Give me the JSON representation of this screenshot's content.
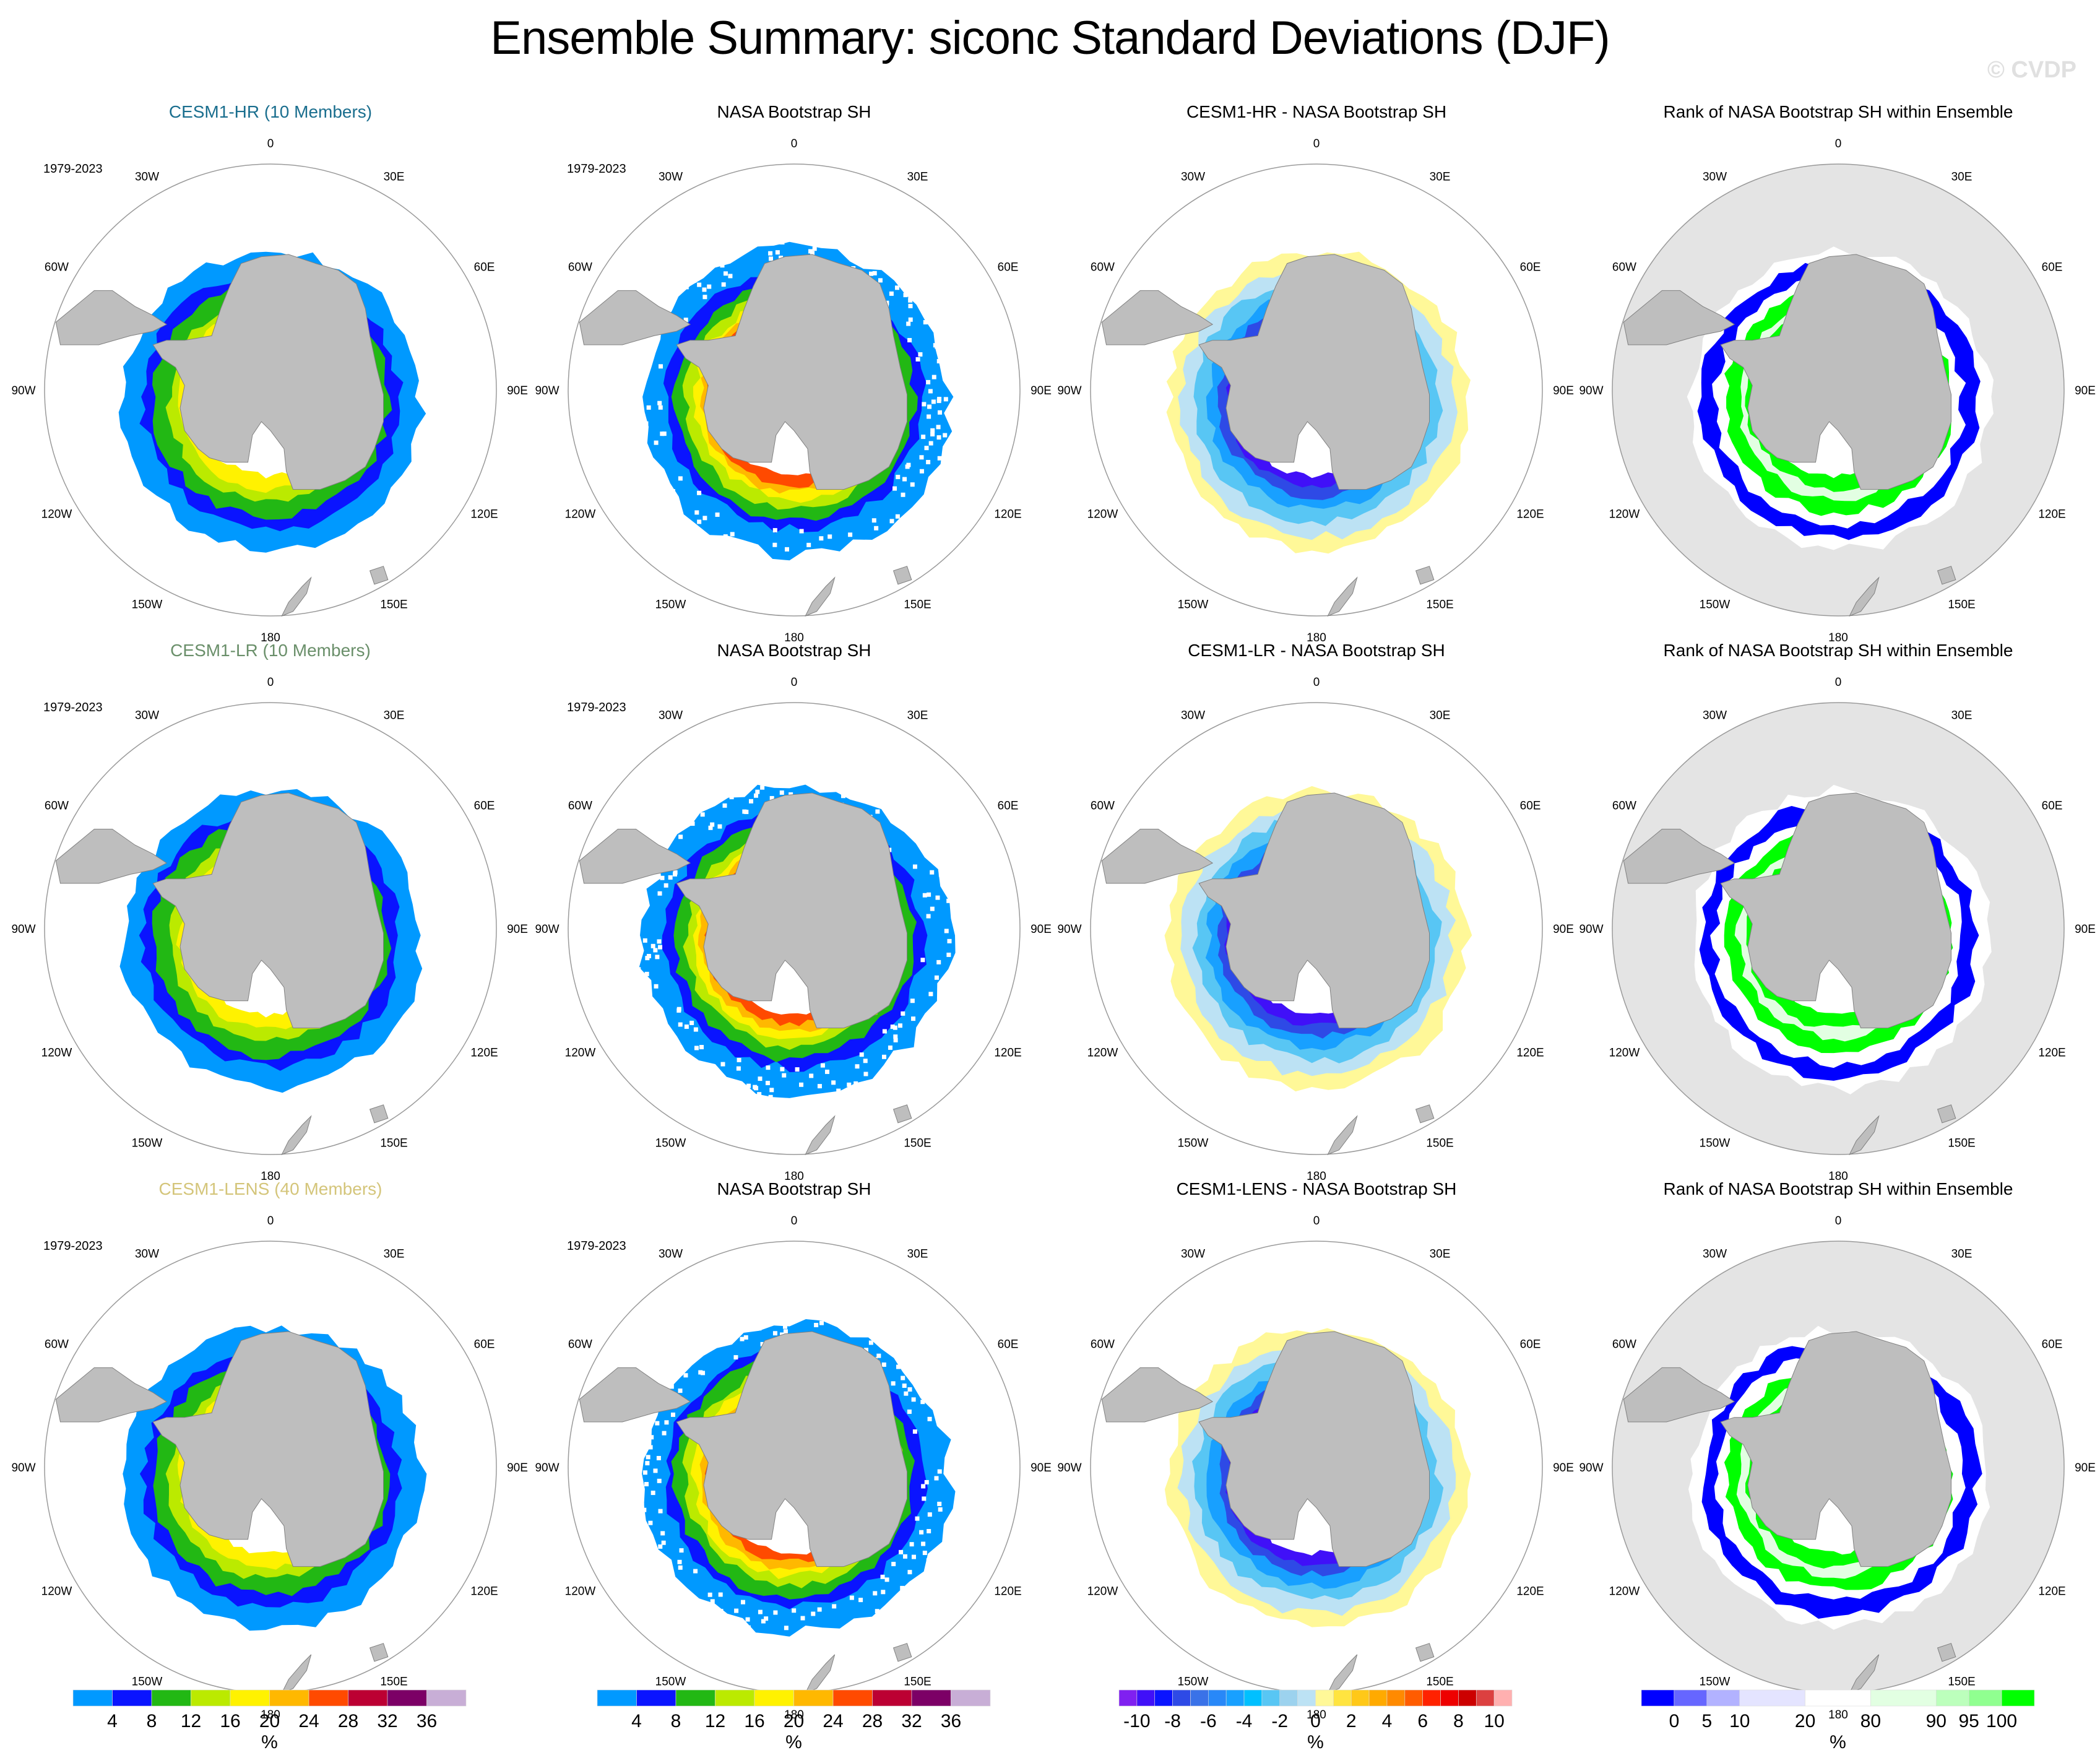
{
  "title": "Ensemble Summary: siconc Standard Deviations (DJF)",
  "watermark": "© CVDP",
  "period": "1979-2023",
  "longitude_labels": [
    "0",
    "30E",
    "60E",
    "90E",
    "120E",
    "150E",
    "180",
    "150W",
    "120W",
    "90W",
    "60W",
    "30W"
  ],
  "rows": [
    {
      "model": "CESM1-HR (10 Members)",
      "model_color": "#1a6e8e",
      "panels": [
        {
          "title": "CESM1-HR (10 Members)",
          "type": "std"
        },
        {
          "title": "NASA Bootstrap SH",
          "type": "obs"
        },
        {
          "title": "CESM1-HR - NASA Bootstrap SH",
          "type": "diff"
        },
        {
          "title": "Rank of NASA Bootstrap SH within Ensemble",
          "type": "rank"
        }
      ]
    },
    {
      "model": "CESM1-LR (10 Members)",
      "model_color": "#6a8f6a",
      "panels": [
        {
          "title": "CESM1-LR (10 Members)",
          "type": "std"
        },
        {
          "title": "NASA Bootstrap SH",
          "type": "obs"
        },
        {
          "title": "CESM1-LR - NASA Bootstrap SH",
          "type": "diff"
        },
        {
          "title": "Rank of NASA Bootstrap SH within Ensemble",
          "type": "rank"
        }
      ]
    },
    {
      "model": "CESM1-LENS (40 Members)",
      "model_color": "#d4c57a",
      "panels": [
        {
          "title": "CESM1-LENS (40 Members)",
          "type": "std"
        },
        {
          "title": "NASA Bootstrap SH",
          "type": "obs"
        },
        {
          "title": "CESM1-LENS - NASA Bootstrap SH",
          "type": "diff"
        },
        {
          "title": "Rank of NASA Bootstrap SH within Ensemble",
          "type": "rank"
        }
      ]
    }
  ],
  "chart_data": {
    "type": "heatmap",
    "title": "Ensemble Summary: siconc Standard Deviations (DJF)",
    "projection": "south polar stereographic",
    "season": "DJF",
    "variable": "siconc",
    "colorbars": [
      {
        "name": "std",
        "units": "%",
        "tick_labels": [
          "4",
          "8",
          "12",
          "16",
          "20",
          "24",
          "28",
          "32",
          "36"
        ],
        "colors": [
          "#0099ff",
          "#0a14ff",
          "#22b814",
          "#bbea00",
          "#fff200",
          "#ffb800",
          "#ff4a00",
          "#bc0033",
          "#7c0066",
          "#c8aed6"
        ]
      },
      {
        "name": "std_obs",
        "units": "%",
        "tick_labels": [
          "4",
          "8",
          "12",
          "16",
          "20",
          "24",
          "28",
          "32",
          "36"
        ],
        "colors": [
          "#0099ff",
          "#0a14ff",
          "#22b814",
          "#bbea00",
          "#fff200",
          "#ffb800",
          "#ff4a00",
          "#bc0033",
          "#7c0066",
          "#c8aed6"
        ]
      },
      {
        "name": "diff",
        "units": "%",
        "tick_labels": [
          "-10",
          "-8",
          "-6",
          "-4",
          "-2",
          "0",
          "2",
          "4",
          "6",
          "8",
          "10"
        ],
        "colors": [
          "#8020f0",
          "#4010f8",
          "#0a14ff",
          "#2e4ae6",
          "#3a72e8",
          "#2888f8",
          "#18a0ff",
          "#00c0ff",
          "#58c6f4",
          "#9cd2ee",
          "#bce2f4",
          "#fff898",
          "#ffe440",
          "#ffc818",
          "#ffaa00",
          "#ff8a00",
          "#ff5c00",
          "#ff2200",
          "#ee0000",
          "#cc0000",
          "#dc4040",
          "#ffb0b0"
        ]
      },
      {
        "name": "rank",
        "units": "%",
        "tick_labels": [
          "0",
          "5",
          "10",
          "20",
          "80",
          "90",
          "95",
          "100"
        ],
        "colors": [
          "#0000ff",
          "#6666ff",
          "#b2b2ff",
          "#e4e4ff",
          "#ffffff",
          "#e2ffe2",
          "#bcffbc",
          "#90ff90",
          "#00ff00"
        ]
      }
    ]
  }
}
